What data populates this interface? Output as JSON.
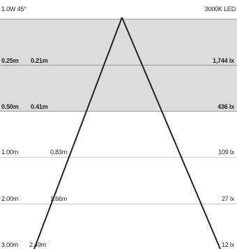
{
  "header": {
    "spec": "1.0W 45°",
    "color": "3000K LED"
  },
  "rows": [
    {
      "distance": "0.25m",
      "diameter": "0.21m",
      "lux": "1,744 lx"
    },
    {
      "distance": "0.50m",
      "diameter": "0.41m",
      "lux": "436 lx"
    },
    {
      "distance": "1.00m",
      "diameter": "0.83m",
      "lux": "109 lx"
    },
    {
      "distance": "2.00m",
      "diameter": "1.66m",
      "lux": "27 lx"
    },
    {
      "distance": "3.00m",
      "diameter": "2.49m",
      "lux": "12 lx"
    }
  ],
  "colors": {
    "shade": "#dcdcdc",
    "line": "#222222"
  }
}
